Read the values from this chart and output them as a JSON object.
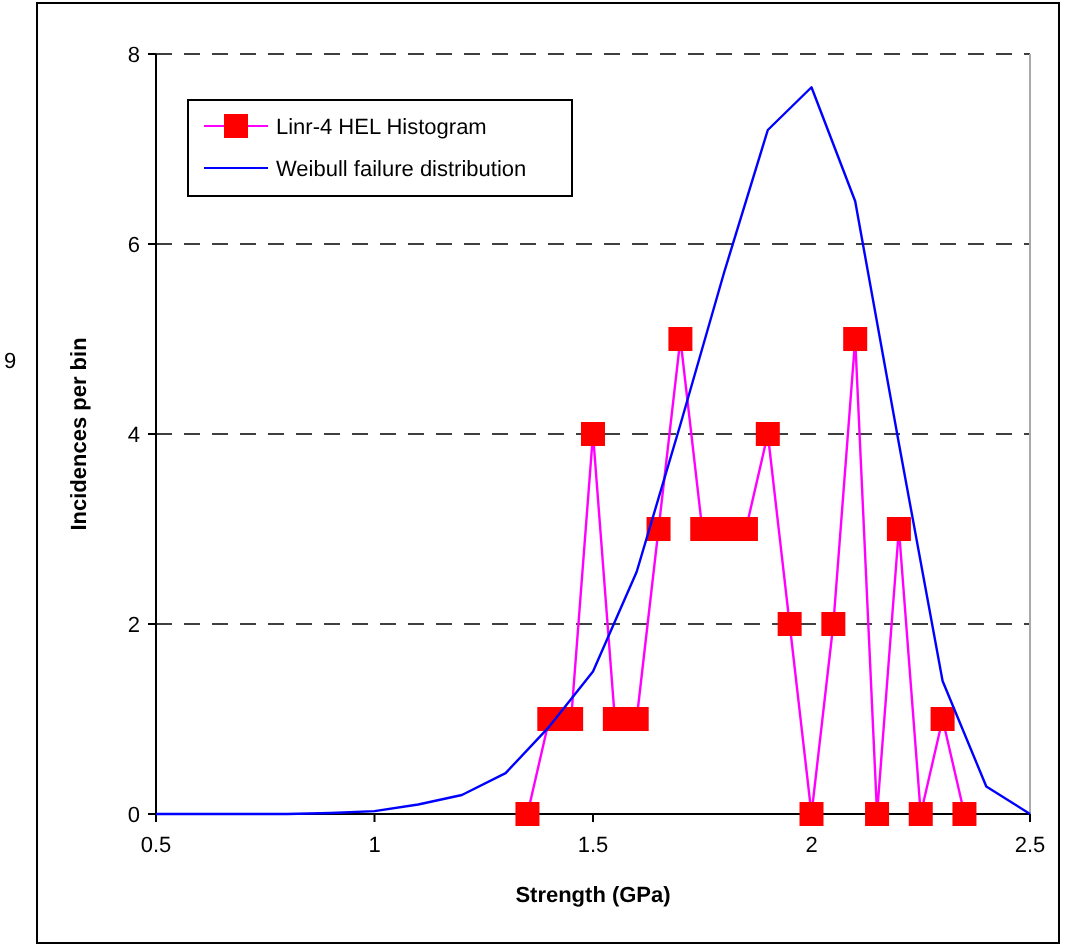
{
  "chart_data": {
    "type": "line",
    "xlabel": "Strength (GPa)",
    "ylabel": "Incidences per bin",
    "xlim": [
      0.5,
      2.5
    ],
    "xticks": [
      0.5,
      1,
      1.5,
      2,
      2.5
    ],
    "ylim": [
      0,
      8
    ],
    "yticks": [
      0,
      2,
      4,
      6,
      8
    ],
    "grid": "y",
    "legend": "top left",
    "annotations": [
      "9"
    ],
    "series": [
      {
        "name": "Linr-4 HEL Histogram",
        "color": "#ff00ff",
        "marker": "square",
        "x": [
          1.35,
          1.4,
          1.45,
          1.5,
          1.55,
          1.6,
          1.65,
          1.7,
          1.75,
          1.8,
          1.85,
          1.9,
          1.95,
          2.0,
          2.05,
          2.1,
          2.15,
          2.2,
          2.25,
          2.3,
          2.35
        ],
        "values": [
          0,
          1,
          1,
          4,
          1,
          1,
          3,
          5,
          3,
          3,
          3,
          4,
          2,
          0,
          2,
          5,
          0,
          3,
          0,
          1,
          0
        ]
      },
      {
        "name": "Weibull failure distribution",
        "color": "#0000ff",
        "marker": "none",
        "x": [
          0.5,
          0.6,
          0.7,
          0.8,
          0.9,
          1.0,
          1.1,
          1.2,
          1.3,
          1.4,
          1.5,
          1.6,
          1.7,
          1.8,
          1.9,
          2.0,
          2.1,
          2.2,
          2.3,
          2.4,
          2.5
        ],
        "values": [
          0,
          0,
          0,
          0,
          0.01,
          0.03,
          0.1,
          0.2,
          0.43,
          0.92,
          1.5,
          2.55,
          4.1,
          5.7,
          7.2,
          7.65,
          6.45,
          3.9,
          1.4,
          0.29,
          0
        ]
      }
    ]
  }
}
